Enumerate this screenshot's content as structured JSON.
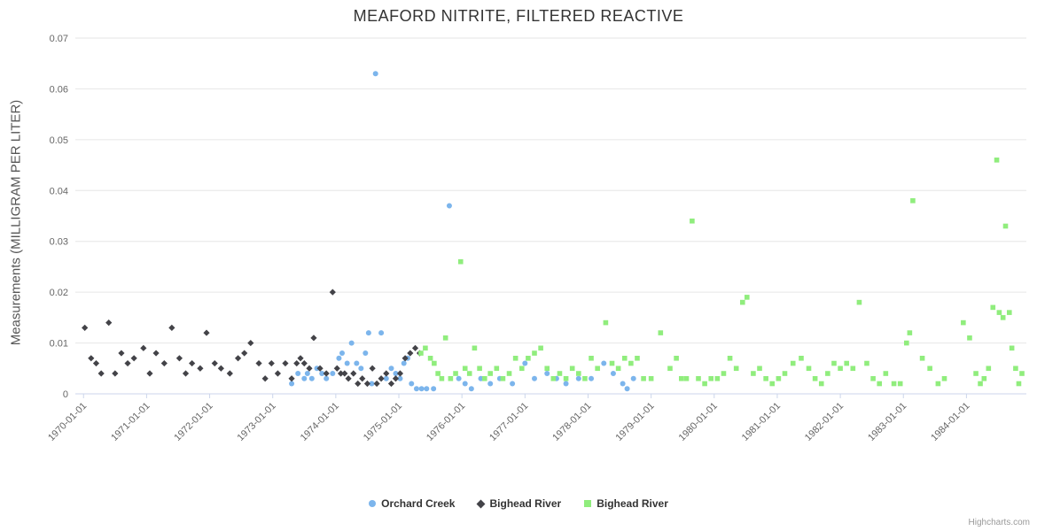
{
  "title": "MEAFORD NITRITE, FILTERED REACTIVE",
  "y_axis_title": "Measurements (MILLIGRAM PER LITER)",
  "credits": "Highcharts.com",
  "colors": {
    "orchard_creek": "#7cb5ec",
    "bighead_river_dark": "#434348",
    "bighead_river_green": "#90ed7d",
    "grid": "#e6e6e6",
    "axis_line": "#ccd6eb",
    "tick_label": "#666666",
    "title_text": "#333333"
  },
  "chart_data": {
    "type": "scatter",
    "title": "MEAFORD NITRITE, FILTERED REACTIVE",
    "xlabel": "",
    "ylabel": "Measurements (MILLIGRAM PER LITER)",
    "xlim": [
      1969.87,
      1984.95
    ],
    "ylim": [
      0,
      0.07
    ],
    "grid": "horizontal",
    "legend_position": "bottom-center",
    "y_ticks": [
      0,
      0.01,
      0.02,
      0.03,
      0.04,
      0.05,
      0.06,
      0.07
    ],
    "y_tick_labels": [
      "0",
      "0.01",
      "0.02",
      "0.03",
      "0.04",
      "0.05",
      "0.06",
      "0.07"
    ],
    "x_tick_years": [
      1970,
      1971,
      1972,
      1973,
      1974,
      1975,
      1976,
      1977,
      1978,
      1979,
      1980,
      1981,
      1982,
      1983,
      1984
    ],
    "x_tick_labels": [
      "1970-01-01",
      "1971-01-01",
      "1972-01-01",
      "1973-01-01",
      "1974-01-01",
      "1975-01-01",
      "1976-01-01",
      "1977-01-01",
      "1978-01-01",
      "1979-01-01",
      "1980-01-01",
      "1981-01-01",
      "1982-01-01",
      "1983-01-01",
      "1984-01-01"
    ],
    "series": [
      {
        "name": "Orchard Creek",
        "marker": "circle",
        "color": "#7cb5ec",
        "points": [
          [
            1973.3,
            0.002
          ],
          [
            1973.4,
            0.004
          ],
          [
            1973.5,
            0.003
          ],
          [
            1973.55,
            0.004
          ],
          [
            1973.62,
            0.003
          ],
          [
            1973.7,
            0.005
          ],
          [
            1973.78,
            0.004
          ],
          [
            1973.85,
            0.003
          ],
          [
            1973.95,
            0.004
          ],
          [
            1974.05,
            0.007
          ],
          [
            1974.1,
            0.008
          ],
          [
            1974.18,
            0.006
          ],
          [
            1974.25,
            0.01
          ],
          [
            1974.33,
            0.006
          ],
          [
            1974.4,
            0.005
          ],
          [
            1974.47,
            0.008
          ],
          [
            1974.52,
            0.012
          ],
          [
            1974.57,
            0.002
          ],
          [
            1974.63,
            0.063
          ],
          [
            1974.72,
            0.012
          ],
          [
            1974.8,
            0.003
          ],
          [
            1974.88,
            0.005
          ],
          [
            1974.95,
            0.004
          ],
          [
            1975.02,
            0.003
          ],
          [
            1975.08,
            0.006
          ],
          [
            1975.14,
            0.007
          ],
          [
            1975.2,
            0.002
          ],
          [
            1975.28,
            0.001
          ],
          [
            1975.36,
            0.001
          ],
          [
            1975.44,
            0.001
          ],
          [
            1975.55,
            0.001
          ],
          [
            1975.8,
            0.037
          ],
          [
            1975.95,
            0.003
          ],
          [
            1976.05,
            0.002
          ],
          [
            1976.15,
            0.001
          ],
          [
            1976.3,
            0.003
          ],
          [
            1976.45,
            0.002
          ],
          [
            1976.6,
            0.003
          ],
          [
            1976.8,
            0.002
          ],
          [
            1977.0,
            0.006
          ],
          [
            1977.15,
            0.003
          ],
          [
            1977.35,
            0.004
          ],
          [
            1977.5,
            0.003
          ],
          [
            1977.65,
            0.002
          ],
          [
            1977.85,
            0.003
          ],
          [
            1978.05,
            0.003
          ],
          [
            1978.25,
            0.006
          ],
          [
            1978.4,
            0.004
          ],
          [
            1978.55,
            0.002
          ],
          [
            1978.62,
            0.001
          ],
          [
            1978.72,
            0.003
          ]
        ]
      },
      {
        "name": "Bighead River",
        "marker": "diamond",
        "color": "#434348",
        "points": [
          [
            1970.02,
            0.013
          ],
          [
            1970.12,
            0.007
          ],
          [
            1970.2,
            0.006
          ],
          [
            1970.28,
            0.004
          ],
          [
            1970.4,
            0.014
          ],
          [
            1970.5,
            0.004
          ],
          [
            1970.6,
            0.008
          ],
          [
            1970.7,
            0.006
          ],
          [
            1970.8,
            0.007
          ],
          [
            1970.95,
            0.009
          ],
          [
            1971.05,
            0.004
          ],
          [
            1971.15,
            0.008
          ],
          [
            1971.28,
            0.006
          ],
          [
            1971.4,
            0.013
          ],
          [
            1971.52,
            0.007
          ],
          [
            1971.62,
            0.004
          ],
          [
            1971.72,
            0.006
          ],
          [
            1971.85,
            0.005
          ],
          [
            1971.95,
            0.012
          ],
          [
            1972.08,
            0.006
          ],
          [
            1972.18,
            0.005
          ],
          [
            1972.32,
            0.004
          ],
          [
            1972.45,
            0.007
          ],
          [
            1972.55,
            0.008
          ],
          [
            1972.65,
            0.01
          ],
          [
            1972.78,
            0.006
          ],
          [
            1972.88,
            0.003
          ],
          [
            1972.98,
            0.006
          ],
          [
            1973.08,
            0.004
          ],
          [
            1973.2,
            0.006
          ],
          [
            1973.3,
            0.003
          ],
          [
            1973.38,
            0.006
          ],
          [
            1973.44,
            0.007
          ],
          [
            1973.5,
            0.006
          ],
          [
            1973.58,
            0.005
          ],
          [
            1973.65,
            0.011
          ],
          [
            1973.75,
            0.005
          ],
          [
            1973.85,
            0.004
          ],
          [
            1973.95,
            0.02
          ],
          [
            1974.02,
            0.005
          ],
          [
            1974.08,
            0.004
          ],
          [
            1974.14,
            0.004
          ],
          [
            1974.2,
            0.003
          ],
          [
            1974.28,
            0.004
          ],
          [
            1974.35,
            0.002
          ],
          [
            1974.42,
            0.003
          ],
          [
            1974.5,
            0.002
          ],
          [
            1974.58,
            0.005
          ],
          [
            1974.65,
            0.002
          ],
          [
            1974.72,
            0.003
          ],
          [
            1974.8,
            0.004
          ],
          [
            1974.88,
            0.002
          ],
          [
            1974.95,
            0.003
          ],
          [
            1975.02,
            0.004
          ],
          [
            1975.1,
            0.007
          ],
          [
            1975.18,
            0.008
          ],
          [
            1975.26,
            0.009
          ],
          [
            1975.33,
            0.008
          ]
        ]
      },
      {
        "name": "Bighead River",
        "marker": "square",
        "color": "#90ed7d",
        "points": [
          [
            1975.35,
            0.008
          ],
          [
            1975.42,
            0.009
          ],
          [
            1975.5,
            0.007
          ],
          [
            1975.56,
            0.006
          ],
          [
            1975.62,
            0.004
          ],
          [
            1975.68,
            0.003
          ],
          [
            1975.74,
            0.011
          ],
          [
            1975.82,
            0.003
          ],
          [
            1975.9,
            0.004
          ],
          [
            1975.98,
            0.026
          ],
          [
            1976.05,
            0.005
          ],
          [
            1976.12,
            0.004
          ],
          [
            1976.2,
            0.009
          ],
          [
            1976.28,
            0.005
          ],
          [
            1976.36,
            0.003
          ],
          [
            1976.45,
            0.004
          ],
          [
            1976.55,
            0.005
          ],
          [
            1976.65,
            0.003
          ],
          [
            1976.75,
            0.004
          ],
          [
            1976.85,
            0.007
          ],
          [
            1976.95,
            0.005
          ],
          [
            1977.05,
            0.007
          ],
          [
            1977.15,
            0.008
          ],
          [
            1977.25,
            0.009
          ],
          [
            1977.35,
            0.005
          ],
          [
            1977.45,
            0.003
          ],
          [
            1977.55,
            0.004
          ],
          [
            1977.65,
            0.003
          ],
          [
            1977.75,
            0.005
          ],
          [
            1977.85,
            0.004
          ],
          [
            1977.95,
            0.003
          ],
          [
            1978.05,
            0.007
          ],
          [
            1978.15,
            0.005
          ],
          [
            1978.28,
            0.014
          ],
          [
            1978.38,
            0.006
          ],
          [
            1978.48,
            0.005
          ],
          [
            1978.58,
            0.007
          ],
          [
            1978.68,
            0.006
          ],
          [
            1978.78,
            0.007
          ],
          [
            1978.88,
            0.003
          ],
          [
            1979.0,
            0.003
          ],
          [
            1979.15,
            0.012
          ],
          [
            1979.3,
            0.005
          ],
          [
            1979.4,
            0.007
          ],
          [
            1979.48,
            0.003
          ],
          [
            1979.56,
            0.003
          ],
          [
            1979.65,
            0.034
          ],
          [
            1979.75,
            0.003
          ],
          [
            1979.85,
            0.002
          ],
          [
            1979.95,
            0.003
          ],
          [
            1980.05,
            0.003
          ],
          [
            1980.15,
            0.004
          ],
          [
            1980.25,
            0.007
          ],
          [
            1980.35,
            0.005
          ],
          [
            1980.45,
            0.018
          ],
          [
            1980.52,
            0.019
          ],
          [
            1980.62,
            0.004
          ],
          [
            1980.72,
            0.005
          ],
          [
            1980.82,
            0.003
          ],
          [
            1980.92,
            0.002
          ],
          [
            1981.02,
            0.003
          ],
          [
            1981.12,
            0.004
          ],
          [
            1981.25,
            0.006
          ],
          [
            1981.38,
            0.007
          ],
          [
            1981.5,
            0.005
          ],
          [
            1981.6,
            0.003
          ],
          [
            1981.7,
            0.002
          ],
          [
            1981.8,
            0.004
          ],
          [
            1981.9,
            0.006
          ],
          [
            1982.0,
            0.005
          ],
          [
            1982.1,
            0.006
          ],
          [
            1982.2,
            0.005
          ],
          [
            1982.3,
            0.018
          ],
          [
            1982.42,
            0.006
          ],
          [
            1982.52,
            0.003
          ],
          [
            1982.62,
            0.002
          ],
          [
            1982.72,
            0.004
          ],
          [
            1982.85,
            0.002
          ],
          [
            1982.95,
            0.002
          ],
          [
            1983.05,
            0.01
          ],
          [
            1983.1,
            0.012
          ],
          [
            1983.15,
            0.038
          ],
          [
            1983.3,
            0.007
          ],
          [
            1983.42,
            0.005
          ],
          [
            1983.55,
            0.002
          ],
          [
            1983.65,
            0.003
          ],
          [
            1983.95,
            0.014
          ],
          [
            1984.05,
            0.011
          ],
          [
            1984.15,
            0.004
          ],
          [
            1984.22,
            0.002
          ],
          [
            1984.28,
            0.003
          ],
          [
            1984.35,
            0.005
          ],
          [
            1984.42,
            0.017
          ],
          [
            1984.48,
            0.046
          ],
          [
            1984.52,
            0.016
          ],
          [
            1984.58,
            0.015
          ],
          [
            1984.62,
            0.033
          ],
          [
            1984.68,
            0.016
          ],
          [
            1984.72,
            0.009
          ],
          [
            1984.78,
            0.005
          ],
          [
            1984.83,
            0.002
          ],
          [
            1984.88,
            0.004
          ]
        ]
      }
    ]
  }
}
